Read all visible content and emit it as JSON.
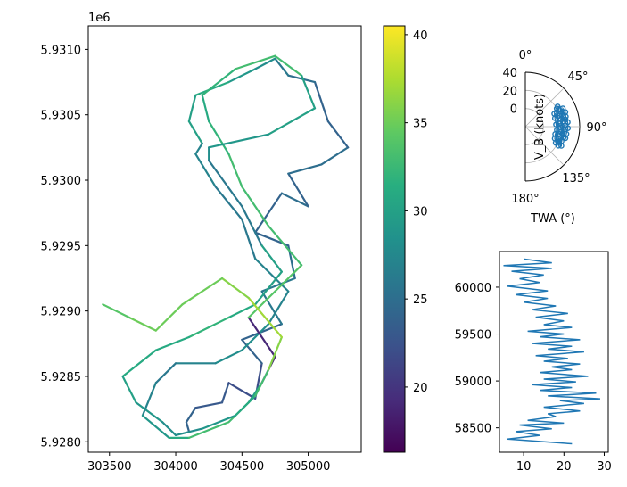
{
  "chart_data": [
    {
      "type": "line",
      "description_role": "track",
      "x_ticks": [
        "303500",
        "304000",
        "304500",
        "305000"
      ],
      "y_ticks": [
        "5.9280",
        "5.9285",
        "5.9290",
        "5.9295",
        "5.9300",
        "5.9305",
        "5.9310"
      ],
      "y_offset_label": "1e6",
      "xlim": [
        303340,
        305400
      ],
      "ylim": [
        5927920,
        5931180
      ],
      "path": [
        [
          304100,
          5928080
        ],
        [
          304080,
          5928150
        ],
        [
          304150,
          5928260
        ],
        [
          304350,
          5928300
        ],
        [
          304400,
          5928450
        ],
        [
          304600,
          5928330
        ],
        [
          304650,
          5928600
        ],
        [
          304500,
          5928780
        ],
        [
          304800,
          5928900
        ],
        [
          304650,
          5929150
        ],
        [
          304900,
          5929250
        ],
        [
          304850,
          5929500
        ],
        [
          304600,
          5929600
        ],
        [
          304800,
          5929900
        ],
        [
          305000,
          5929800
        ],
        [
          304850,
          5930050
        ],
        [
          305100,
          5930120
        ],
        [
          305300,
          5930250
        ],
        [
          305150,
          5930450
        ],
        [
          305050,
          5930750
        ],
        [
          304850,
          5930800
        ],
        [
          304750,
          5930930
        ],
        [
          304600,
          5930850
        ],
        [
          304400,
          5930750
        ],
        [
          304150,
          5930650
        ],
        [
          304100,
          5930450
        ],
        [
          304200,
          5930280
        ],
        [
          304150,
          5930200
        ],
        [
          304300,
          5929950
        ],
        [
          304500,
          5929700
        ],
        [
          304600,
          5929400
        ],
        [
          304850,
          5929150
        ],
        [
          304700,
          5928900
        ],
        [
          304500,
          5928700
        ],
        [
          304300,
          5928600
        ],
        [
          304000,
          5928600
        ],
        [
          303850,
          5928450
        ],
        [
          303750,
          5928200
        ],
        [
          303950,
          5928030
        ],
        [
          304100,
          5928030
        ],
        [
          304400,
          5928150
        ],
        [
          304550,
          5928300
        ],
        [
          304650,
          5928450
        ],
        [
          304750,
          5928650
        ],
        [
          304550,
          5928950
        ],
        [
          304750,
          5929150
        ],
        [
          304950,
          5929350
        ],
        [
          304700,
          5929650
        ],
        [
          304500,
          5929950
        ],
        [
          304400,
          5930200
        ],
        [
          304250,
          5930450
        ],
        [
          304200,
          5930650
        ],
        [
          304450,
          5930850
        ],
        [
          304750,
          5930950
        ],
        [
          304950,
          5930800
        ],
        [
          305050,
          5930550
        ],
        [
          304700,
          5930350
        ],
        [
          304250,
          5930250
        ],
        [
          304250,
          5930150
        ],
        [
          304500,
          5929800
        ],
        [
          304650,
          5929500
        ],
        [
          304800,
          5929300
        ],
        [
          304600,
          5929050
        ],
        [
          304400,
          5928950
        ],
        [
          304100,
          5928800
        ],
        [
          303850,
          5928700
        ],
        [
          303600,
          5928500
        ],
        [
          303700,
          5928300
        ],
        [
          303900,
          5928150
        ],
        [
          304000,
          5928050
        ],
        [
          304200,
          5928100
        ],
        [
          304450,
          5928200
        ],
        [
          304600,
          5928350
        ],
        [
          304700,
          5928550
        ],
        [
          304800,
          5928800
        ],
        [
          304550,
          5929100
        ],
        [
          304350,
          5929250
        ],
        [
          304050,
          5929050
        ],
        [
          303850,
          5928850
        ],
        [
          303650,
          5928950
        ],
        [
          303450,
          5929050
        ]
      ],
      "segment_values": [
        24,
        24,
        23,
        23,
        22,
        22,
        24,
        24,
        26,
        26,
        25,
        24,
        24,
        25,
        24,
        25,
        25,
        24,
        24,
        25,
        26,
        28,
        29,
        31,
        30,
        30,
        27,
        27,
        26,
        26,
        27,
        27,
        28,
        28,
        27,
        26,
        27,
        29,
        31,
        33,
        33,
        30,
        19,
        19,
        34,
        34,
        33,
        33,
        33,
        32,
        31,
        32,
        33,
        33,
        30,
        30,
        29,
        28,
        26,
        26,
        30,
        30,
        31,
        32,
        31,
        31,
        30,
        29,
        28,
        28,
        29,
        31,
        33,
        36,
        37,
        36,
        35,
        35,
        35,
        34
      ],
      "colorbar": {
        "label": "",
        "ticks": [
          "20",
          "25",
          "30",
          "35",
          "40"
        ],
        "range": [
          16.3,
          40.5
        ],
        "colormap": "viridis"
      }
    },
    {
      "type": "scatter",
      "description_role": "polar",
      "angle_ticks": [
        "0°",
        "45°",
        "90°",
        "135°",
        "180°"
      ],
      "radial_ticks": [
        "0",
        "20",
        "40"
      ],
      "rlim": [
        -20,
        40
      ],
      "ylabel": "V_B (knots)",
      "xlabel": "TWA (°)",
      "color": "#1f77b4",
      "points": [
        [
          60,
          20
        ],
        [
          62,
          22
        ],
        [
          65,
          18
        ],
        [
          68,
          24
        ],
        [
          70,
          21
        ],
        [
          72,
          19
        ],
        [
          75,
          23
        ],
        [
          78,
          20
        ],
        [
          80,
          25
        ],
        [
          82,
          22
        ],
        [
          85,
          18
        ],
        [
          88,
          24
        ],
        [
          90,
          21
        ],
        [
          92,
          19
        ],
        [
          95,
          23
        ],
        [
          98,
          20
        ],
        [
          100,
          22
        ],
        [
          102,
          18
        ],
        [
          105,
          24
        ],
        [
          108,
          21
        ],
        [
          110,
          19
        ],
        [
          112,
          23
        ],
        [
          115,
          20
        ],
        [
          118,
          25
        ],
        [
          64,
          26
        ],
        [
          70,
          27
        ],
        [
          76,
          26
        ],
        [
          84,
          27
        ],
        [
          92,
          27
        ],
        [
          100,
          26
        ],
        [
          106,
          26
        ],
        [
          66,
          15
        ],
        [
          74,
          14
        ],
        [
          86,
          14
        ],
        [
          96,
          15
        ],
        [
          104,
          14
        ],
        [
          112,
          15
        ],
        [
          118,
          18
        ],
        [
          58,
          22
        ],
        [
          120,
          22
        ]
      ]
    },
    {
      "type": "line",
      "description_role": "distribution",
      "x_ticks": [
        "10",
        "20",
        "30"
      ],
      "y_ticks": [
        "58500",
        "59000",
        "59500",
        "60000"
      ],
      "xlim": [
        4,
        31
      ],
      "ylim": [
        58240,
        60380
      ],
      "color": "#1f77b4",
      "points": [
        [
          22,
          58330
        ],
        [
          6,
          58380
        ],
        [
          14,
          58420
        ],
        [
          8,
          58460
        ],
        [
          17,
          58490
        ],
        [
          9,
          58530
        ],
        [
          20,
          58550
        ],
        [
          11,
          58580
        ],
        [
          18,
          58620
        ],
        [
          16,
          58650
        ],
        [
          24,
          58680
        ],
        [
          15,
          58720
        ],
        [
          25,
          58760
        ],
        [
          19,
          58790
        ],
        [
          29,
          58810
        ],
        [
          16,
          58840
        ],
        [
          28,
          58870
        ],
        [
          14,
          58900
        ],
        [
          22,
          58930
        ],
        [
          12,
          58960
        ],
        [
          23,
          58990
        ],
        [
          15,
          59020
        ],
        [
          26,
          59050
        ],
        [
          14,
          59090
        ],
        [
          22,
          59120
        ],
        [
          17,
          59150
        ],
        [
          24,
          59180
        ],
        [
          15,
          59210
        ],
        [
          21,
          59240
        ],
        [
          13,
          59270
        ],
        [
          25,
          59310
        ],
        [
          16,
          59340
        ],
        [
          22,
          59370
        ],
        [
          12,
          59400
        ],
        [
          24,
          59440
        ],
        [
          14,
          59470
        ],
        [
          20,
          59500
        ],
        [
          11,
          59530
        ],
        [
          22,
          59570
        ],
        [
          15,
          59600
        ],
        [
          20,
          59640
        ],
        [
          13,
          59680
        ],
        [
          21,
          59720
        ],
        [
          12,
          59760
        ],
        [
          18,
          59800
        ],
        [
          10,
          59840
        ],
        [
          16,
          59880
        ],
        [
          8,
          59920
        ],
        [
          16,
          59960
        ],
        [
          6,
          60010
        ],
        [
          14,
          60050
        ],
        [
          9,
          60090
        ],
        [
          15,
          60130
        ],
        [
          7,
          60170
        ],
        [
          17,
          60200
        ],
        [
          5,
          60230
        ],
        [
          17,
          60260
        ],
        [
          10,
          60300
        ]
      ]
    }
  ]
}
